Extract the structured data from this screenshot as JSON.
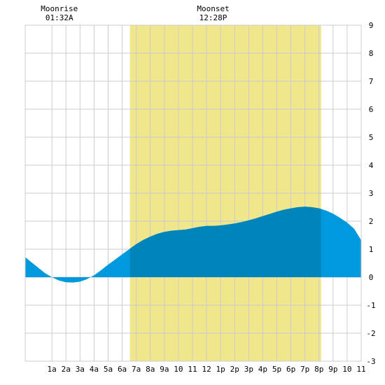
{
  "annotations": [
    {
      "title": "Moonrise",
      "time": "01:32A",
      "hour": 1.53
    },
    {
      "title": "Moonset",
      "time": "12:28P",
      "hour": 12.47
    }
  ],
  "chart_data": {
    "type": "area",
    "title": "",
    "xlabel": "",
    "ylabel": "",
    "xlim": [
      -0.9,
      23
    ],
    "ylim": [
      -3,
      9
    ],
    "grid": true,
    "x_ticks": [
      {
        "x": 1,
        "label": "1a"
      },
      {
        "x": 2,
        "label": "2a"
      },
      {
        "x": 3,
        "label": "3a"
      },
      {
        "x": 4,
        "label": "4a"
      },
      {
        "x": 5,
        "label": "5a"
      },
      {
        "x": 6,
        "label": "6a"
      },
      {
        "x": 7,
        "label": "7a"
      },
      {
        "x": 8,
        "label": "8a"
      },
      {
        "x": 9,
        "label": "9a"
      },
      {
        "x": 10,
        "label": "10"
      },
      {
        "x": 11,
        "label": "11"
      },
      {
        "x": 12,
        "label": "12"
      },
      {
        "x": 13,
        "label": "1p"
      },
      {
        "x": 14,
        "label": "2p"
      },
      {
        "x": 15,
        "label": "3p"
      },
      {
        "x": 16,
        "label": "4p"
      },
      {
        "x": 17,
        "label": "5p"
      },
      {
        "x": 18,
        "label": "6p"
      },
      {
        "x": 19,
        "label": "7p"
      },
      {
        "x": 20,
        "label": "8p"
      },
      {
        "x": 21,
        "label": "9p"
      },
      {
        "x": 22,
        "label": "10"
      },
      {
        "x": 23,
        "label": "11"
      }
    ],
    "y_ticks": [
      -3,
      -2,
      -1,
      0,
      1,
      2,
      3,
      4,
      5,
      6,
      7,
      8,
      9
    ],
    "daylight": {
      "start": 6.55,
      "end": 20.15
    },
    "series": [
      {
        "x": [
          -0.9,
          -0.5,
          0,
          0.5,
          1,
          1.5,
          2,
          2.5,
          3,
          3.5,
          4,
          4.5,
          5,
          5.5,
          6,
          6.5,
          7,
          7.5,
          8,
          8.5,
          9,
          9.5,
          10,
          10.5,
          11,
          11.5,
          12,
          12.5,
          13,
          13.5,
          14,
          14.5,
          15,
          15.5,
          16,
          16.5,
          17,
          17.5,
          18,
          18.5,
          19,
          19.5,
          20,
          20.5,
          21,
          21.5,
          22,
          22.5,
          23
        ],
        "values": [
          0.72,
          0.55,
          0.35,
          0.15,
          0.0,
          -0.12,
          -0.18,
          -0.19,
          -0.16,
          -0.07,
          0.07,
          0.25,
          0.45,
          0.63,
          0.82,
          1.0,
          1.18,
          1.33,
          1.45,
          1.55,
          1.62,
          1.66,
          1.68,
          1.7,
          1.75,
          1.8,
          1.83,
          1.83,
          1.85,
          1.88,
          1.92,
          1.97,
          2.03,
          2.1,
          2.18,
          2.26,
          2.34,
          2.41,
          2.46,
          2.5,
          2.52,
          2.5,
          2.46,
          2.38,
          2.27,
          2.12,
          1.95,
          1.73,
          1.32
        ]
      }
    ],
    "colors": {
      "daylight": "#f0e68c",
      "tide": "#0099dd",
      "tide_daytime": "#0085bb",
      "grid": "#cccccc",
      "axis": "#000000"
    }
  }
}
